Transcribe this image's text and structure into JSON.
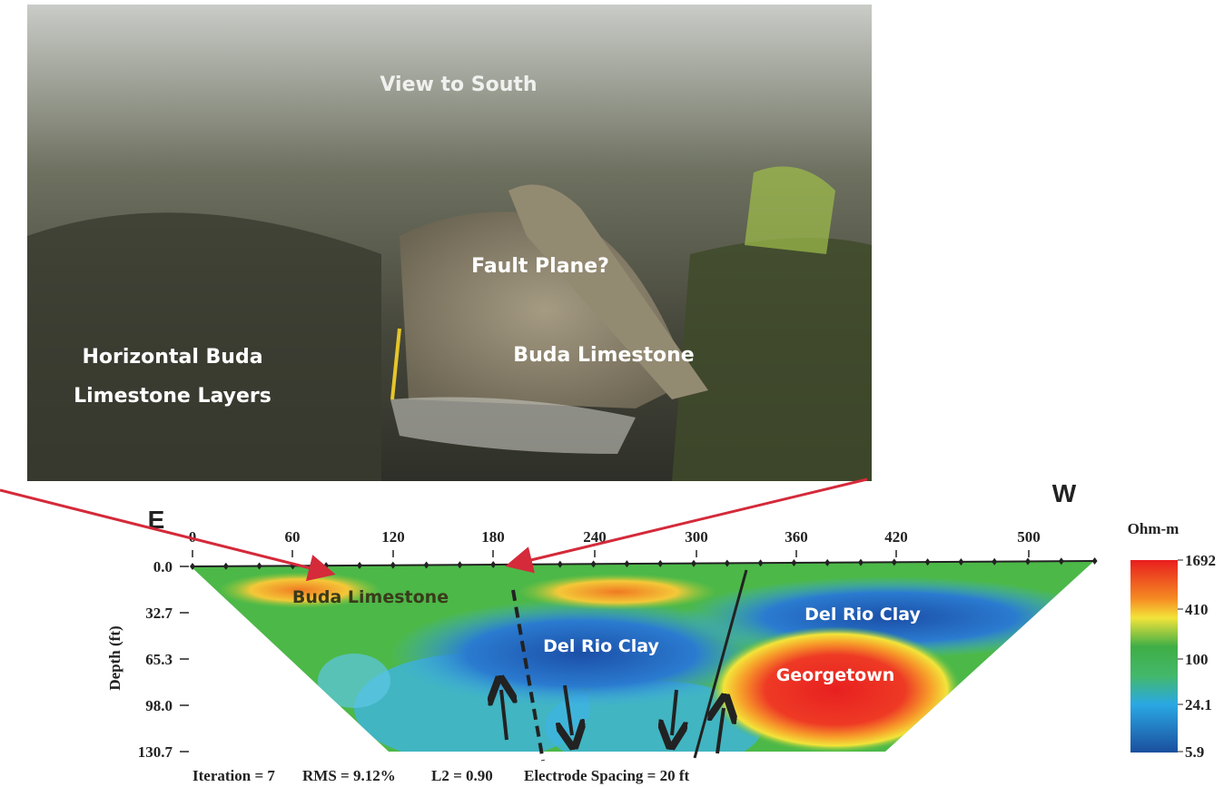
{
  "photo": {
    "labels": {
      "view": "View to South",
      "fault": "Fault Plane?",
      "buda": "Buda Limestone",
      "horizontal": [
        "Horizontal Buda",
        "Limestone Layers"
      ]
    }
  },
  "section": {
    "directions": {
      "east": "E",
      "west": "W"
    },
    "x_ticks": [
      "0",
      "60",
      "120",
      "180",
      "240",
      "300",
      "360",
      "420",
      "500"
    ],
    "depth_ticks": [
      "0.0",
      "32.7",
      "65.3",
      "98.0",
      "130.7"
    ],
    "depth_label": "Depth (ft)",
    "colorbar": {
      "unit": "Ohm-m",
      "ticks": [
        "1692",
        "410",
        "100",
        "24.1",
        "5.9"
      ]
    },
    "regions": [
      "Buda Limestone",
      "Del Rio Clay",
      "Del Rio Clay",
      "Georgetown"
    ],
    "footer": [
      "Iteration = 7",
      "RMS = 9.12%",
      "L2 = 0.90",
      "Electrode Spacing = 20 ft"
    ]
  }
}
